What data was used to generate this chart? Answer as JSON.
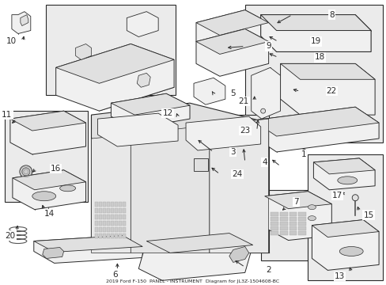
{
  "title": "2019 Ford F-150  PANEL - INSTRUMENT  Diagram for JL3Z-1504608-BC",
  "bg_color": "#ffffff",
  "fig_width": 4.89,
  "fig_height": 3.6,
  "dpi": 100,
  "label_fontsize": 7.5,
  "title_fontsize": 4.5,
  "lc": "#2a2a2a",
  "fc_light": "#f0f0f0",
  "fc_mid": "#e0e0e0",
  "fc_dark": "#cccccc",
  "box_fc": "#ebebeb"
}
